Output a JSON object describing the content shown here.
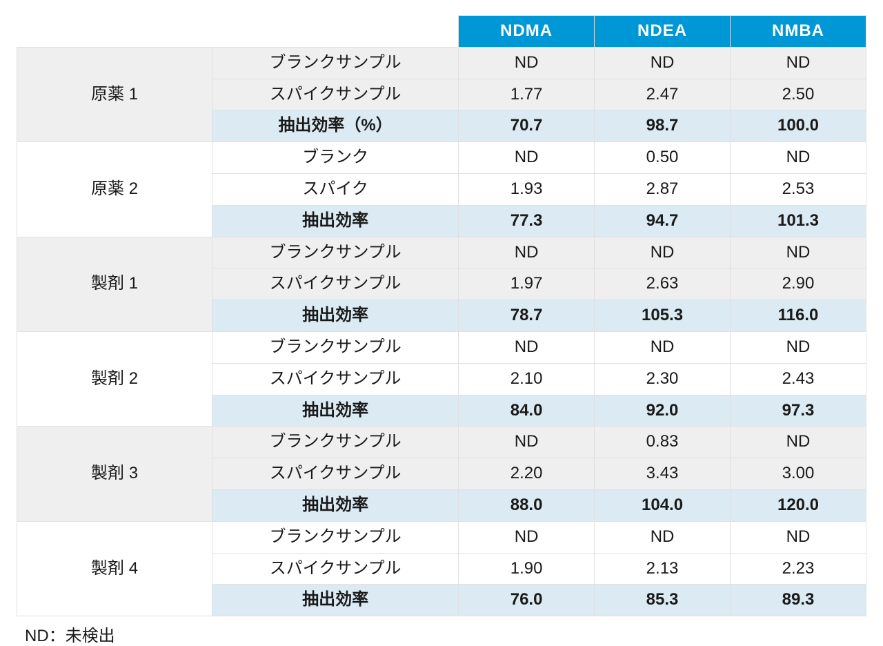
{
  "table": {
    "analytes": [
      "NDMA",
      "NDEA",
      "NMBA"
    ],
    "footnote": "ND：未検出",
    "header_bg": "#0097d7",
    "header_fg": "#ffffff",
    "eff_row_bg": "#dbeaf3",
    "shade_bg": "#efefef",
    "border_color": "#e0e0e0",
    "groups": [
      {
        "name": "原薬 1",
        "shaded": true,
        "rows": [
          {
            "label": "ブランクサンプル",
            "vals": [
              "ND",
              "ND",
              "ND"
            ]
          },
          {
            "label": "スパイクサンプル",
            "vals": [
              "1.77",
              "2.47",
              "2.50"
            ]
          },
          {
            "label": "抽出効率（%）",
            "vals": [
              "70.7",
              "98.7",
              "100.0"
            ],
            "eff": true
          }
        ]
      },
      {
        "name": "原薬 2",
        "shaded": false,
        "rows": [
          {
            "label": "ブランク",
            "vals": [
              "ND",
              "0.50",
              "ND"
            ]
          },
          {
            "label": "スパイク",
            "vals": [
              "1.93",
              "2.87",
              "2.53"
            ]
          },
          {
            "label": "抽出効率",
            "vals": [
              "77.3",
              "94.7",
              "101.3"
            ],
            "eff": true
          }
        ]
      },
      {
        "name": "製剤 1",
        "shaded": true,
        "rows": [
          {
            "label": "ブランクサンプル",
            "vals": [
              "ND",
              "ND",
              "ND"
            ]
          },
          {
            "label": "スパイクサンプル",
            "vals": [
              "1.97",
              "2.63",
              "2.90"
            ]
          },
          {
            "label": "抽出効率",
            "vals": [
              "78.7",
              "105.3",
              "116.0"
            ],
            "eff": true
          }
        ]
      },
      {
        "name": "製剤 2",
        "shaded": false,
        "rows": [
          {
            "label": "ブランクサンプル",
            "vals": [
              "ND",
              "ND",
              "ND"
            ]
          },
          {
            "label": "スパイクサンプル",
            "vals": [
              "2.10",
              "2.30",
              "2.43"
            ]
          },
          {
            "label": "抽出効率",
            "vals": [
              "84.0",
              "92.0",
              "97.3"
            ],
            "eff": true
          }
        ]
      },
      {
        "name": "製剤 3",
        "shaded": true,
        "rows": [
          {
            "label": "ブランクサンプル",
            "vals": [
              "ND",
              "0.83",
              "ND"
            ]
          },
          {
            "label": "スパイクサンプル",
            "vals": [
              "2.20",
              "3.43",
              "3.00"
            ]
          },
          {
            "label": "抽出効率",
            "vals": [
              "88.0",
              "104.0",
              "120.0"
            ],
            "eff": true
          }
        ]
      },
      {
        "name": "製剤 4",
        "shaded": false,
        "rows": [
          {
            "label": "ブランクサンプル",
            "vals": [
              "ND",
              "ND",
              "ND"
            ]
          },
          {
            "label": "スパイクサンプル",
            "vals": [
              "1.90",
              "2.13",
              "2.23"
            ]
          },
          {
            "label": "抽出効率",
            "vals": [
              "76.0",
              "85.3",
              "89.3"
            ],
            "eff": true
          }
        ]
      }
    ]
  }
}
